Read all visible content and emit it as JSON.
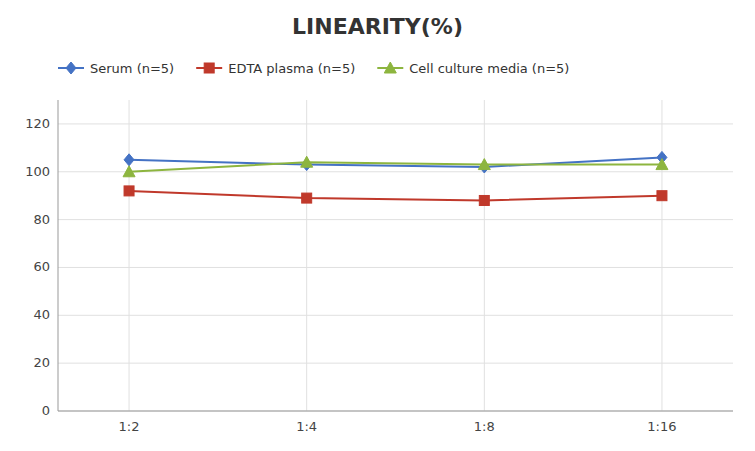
{
  "chart_data": {
    "type": "line",
    "title": "LINEARITY(%)",
    "categories": [
      "1:2",
      "1:4",
      "1:8",
      "1:16"
    ],
    "series": [
      {
        "name": "Serum (n=5)",
        "color": "#4472C4",
        "marker": "diamond",
        "values": [
          105,
          103,
          102,
          106
        ]
      },
      {
        "name": "EDTA plasma (n=5)",
        "color": "#C0392B",
        "marker": "square",
        "values": [
          92,
          89,
          88,
          90
        ]
      },
      {
        "name": "Cell culture media (n=5)",
        "color": "#8DB53F",
        "marker": "triangle",
        "values": [
          100,
          104,
          103,
          103
        ]
      }
    ],
    "ylim": [
      0,
      130
    ],
    "yticks": [
      0,
      20,
      40,
      60,
      80,
      100,
      120
    ],
    "grid": true,
    "legend": "top"
  }
}
